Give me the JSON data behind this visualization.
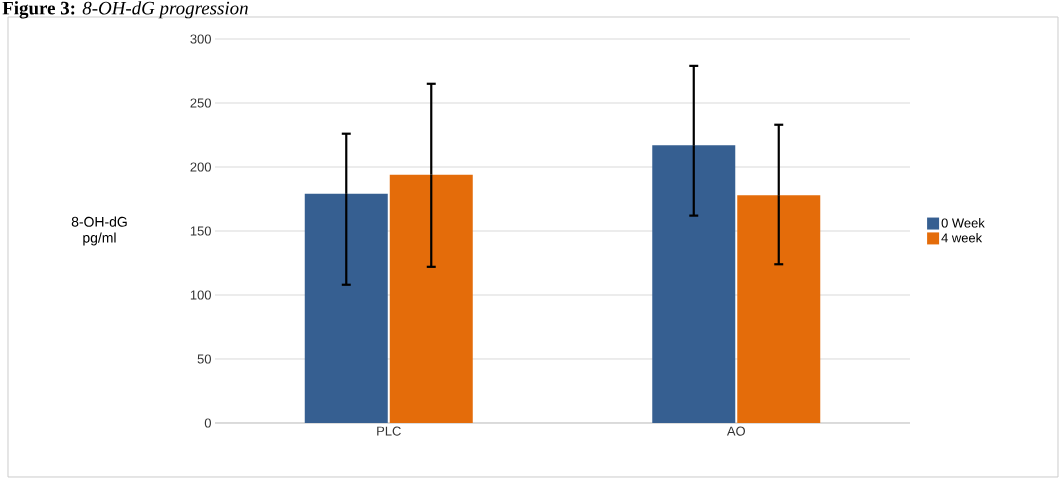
{
  "chart_data": {
    "type": "bar",
    "title": "**Figure 3:** *8-OH-dG progression*",
    "ylabel": "8-OH-dG pg/ml",
    "categories": [
      "PLC",
      "AO"
    ],
    "series": [
      {
        "name": "0 Week",
        "color": "#365f91",
        "values": [
          179,
          217
        ],
        "errors": [
          [
            108,
            226
          ],
          [
            162,
            279
          ]
        ]
      },
      {
        "name": "4 week",
        "color": "#e46c0a",
        "values": [
          194,
          178
        ],
        "errors": [
          [
            122,
            265
          ],
          [
            124,
            233
          ]
        ]
      }
    ],
    "ylim": [
      0,
      300
    ],
    "yticks": [
      0,
      50,
      100,
      150,
      200,
      250,
      300
    ],
    "grid": "y",
    "legend": "right"
  }
}
